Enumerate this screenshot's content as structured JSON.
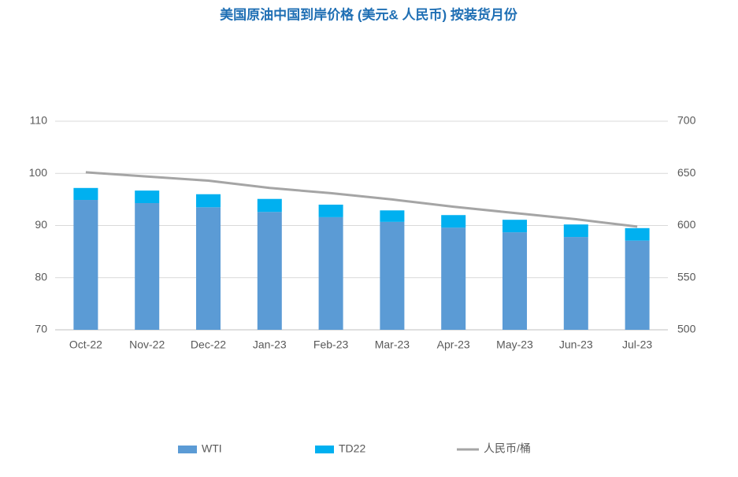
{
  "chart_data": {
    "type": "bar-line",
    "title": "美国原油中国到岸价格 (美元& 人民币) 按装货月份",
    "categories": [
      "Oct-22",
      "Nov-22",
      "Dec-22",
      "Jan-23",
      "Feb-23",
      "Mar-23",
      "Apr-23",
      "May-23",
      "Jun-23",
      "Jul-23"
    ],
    "series": [
      {
        "name": "WTI",
        "color": "#5b9bd5",
        "type": "bar",
        "values": [
          94.9,
          94.3,
          93.5,
          92.6,
          91.6,
          90.7,
          89.6,
          88.7,
          87.8,
          87.1
        ]
      },
      {
        "name": "TD22",
        "color": "#00b0f0",
        "type": "bar",
        "values": [
          2.3,
          2.4,
          2.5,
          2.5,
          2.4,
          2.2,
          2.4,
          2.4,
          2.4,
          2.4
        ]
      },
      {
        "name": "人民币/桶",
        "color": "#a5a5a5",
        "type": "line",
        "axis": "y2",
        "values": [
          651,
          647,
          643,
          636,
          631,
          625,
          618,
          612,
          606,
          599
        ]
      }
    ],
    "ylim": [
      70,
      110
    ],
    "yticks": [
      70,
      80,
      90,
      100,
      110
    ],
    "y2lim": [
      500,
      700
    ],
    "y2ticks": [
      500,
      550,
      600,
      650,
      700
    ],
    "grid": true,
    "legend": "bottom"
  }
}
